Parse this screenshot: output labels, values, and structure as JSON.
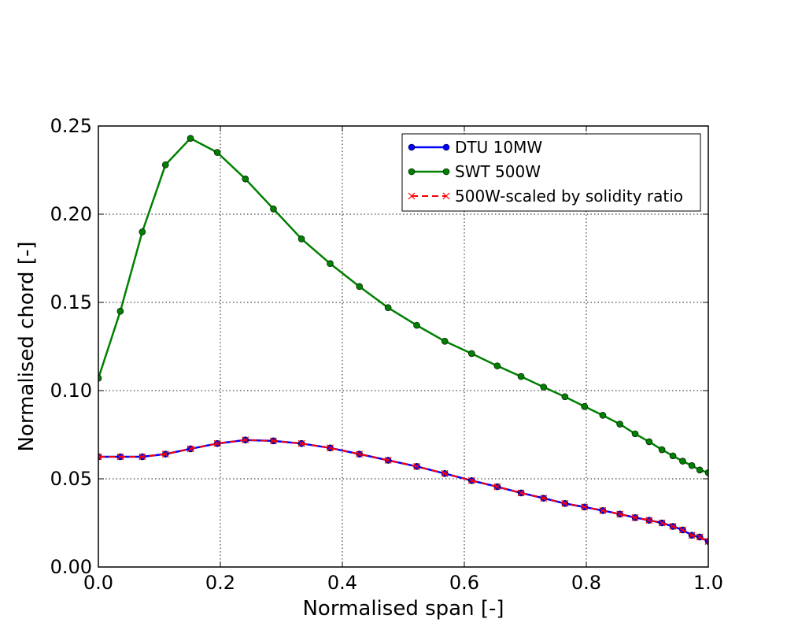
{
  "chart_data": {
    "type": "line",
    "xlabel": "Normalised span [-]",
    "ylabel": "Normalised chord [-]",
    "xlim": [
      0.0,
      1.0
    ],
    "ylim": [
      0.0,
      0.25
    ],
    "xticks": [
      "0.0",
      "0.2",
      "0.4",
      "0.6",
      "0.8",
      "1.0"
    ],
    "yticks": [
      "0.00",
      "0.05",
      "0.10",
      "0.15",
      "0.20",
      "0.25"
    ],
    "grid": true,
    "legend_position": "top-right",
    "series": [
      {
        "name": "DTU 10MW",
        "color": "#0000ff",
        "marker": "circle",
        "line": "solid",
        "x": [
          0.0,
          0.036,
          0.072,
          0.11,
          0.151,
          0.195,
          0.241,
          0.287,
          0.333,
          0.38,
          0.428,
          0.475,
          0.522,
          0.568,
          0.612,
          0.654,
          0.693,
          0.73,
          0.765,
          0.797,
          0.827,
          0.855,
          0.88,
          0.903,
          0.924,
          0.942,
          0.958,
          0.973,
          0.986,
          1.0
        ],
        "values": [
          0.0625,
          0.0625,
          0.0625,
          0.064,
          0.067,
          0.07,
          0.072,
          0.0715,
          0.07,
          0.0675,
          0.064,
          0.0605,
          0.057,
          0.053,
          0.049,
          0.0455,
          0.042,
          0.039,
          0.036,
          0.034,
          0.032,
          0.03,
          0.028,
          0.0265,
          0.025,
          0.023,
          0.021,
          0.018,
          0.017,
          0.0145
        ]
      },
      {
        "name": "SWT 500W",
        "color": "#008000",
        "marker": "circle",
        "line": "solid",
        "x": [
          0.0,
          0.036,
          0.072,
          0.11,
          0.151,
          0.195,
          0.241,
          0.287,
          0.333,
          0.38,
          0.428,
          0.475,
          0.522,
          0.568,
          0.612,
          0.654,
          0.693,
          0.73,
          0.765,
          0.797,
          0.827,
          0.855,
          0.88,
          0.903,
          0.924,
          0.942,
          0.958,
          0.973,
          0.986,
          1.0
        ],
        "values": [
          0.107,
          0.145,
          0.19,
          0.228,
          0.243,
          0.235,
          0.22,
          0.203,
          0.186,
          0.172,
          0.159,
          0.147,
          0.137,
          0.128,
          0.121,
          0.114,
          0.108,
          0.102,
          0.0965,
          0.091,
          0.086,
          0.081,
          0.0755,
          0.071,
          0.0665,
          0.063,
          0.06,
          0.0575,
          0.055,
          0.0535
        ]
      },
      {
        "name": "500W-scaled by solidity ratio",
        "color": "#ff0000",
        "marker": "x",
        "line": "dashed",
        "x": [
          0.0,
          0.036,
          0.072,
          0.11,
          0.151,
          0.195,
          0.241,
          0.287,
          0.333,
          0.38,
          0.428,
          0.475,
          0.522,
          0.568,
          0.612,
          0.654,
          0.693,
          0.73,
          0.765,
          0.797,
          0.827,
          0.855,
          0.88,
          0.903,
          0.924,
          0.942,
          0.958,
          0.973,
          0.986,
          1.0
        ],
        "values": [
          0.0625,
          0.0625,
          0.0625,
          0.064,
          0.067,
          0.07,
          0.072,
          0.0715,
          0.07,
          0.0675,
          0.064,
          0.0605,
          0.057,
          0.053,
          0.049,
          0.0455,
          0.042,
          0.039,
          0.036,
          0.034,
          0.032,
          0.03,
          0.028,
          0.0265,
          0.025,
          0.023,
          0.021,
          0.018,
          0.017,
          0.0145
        ]
      }
    ]
  }
}
